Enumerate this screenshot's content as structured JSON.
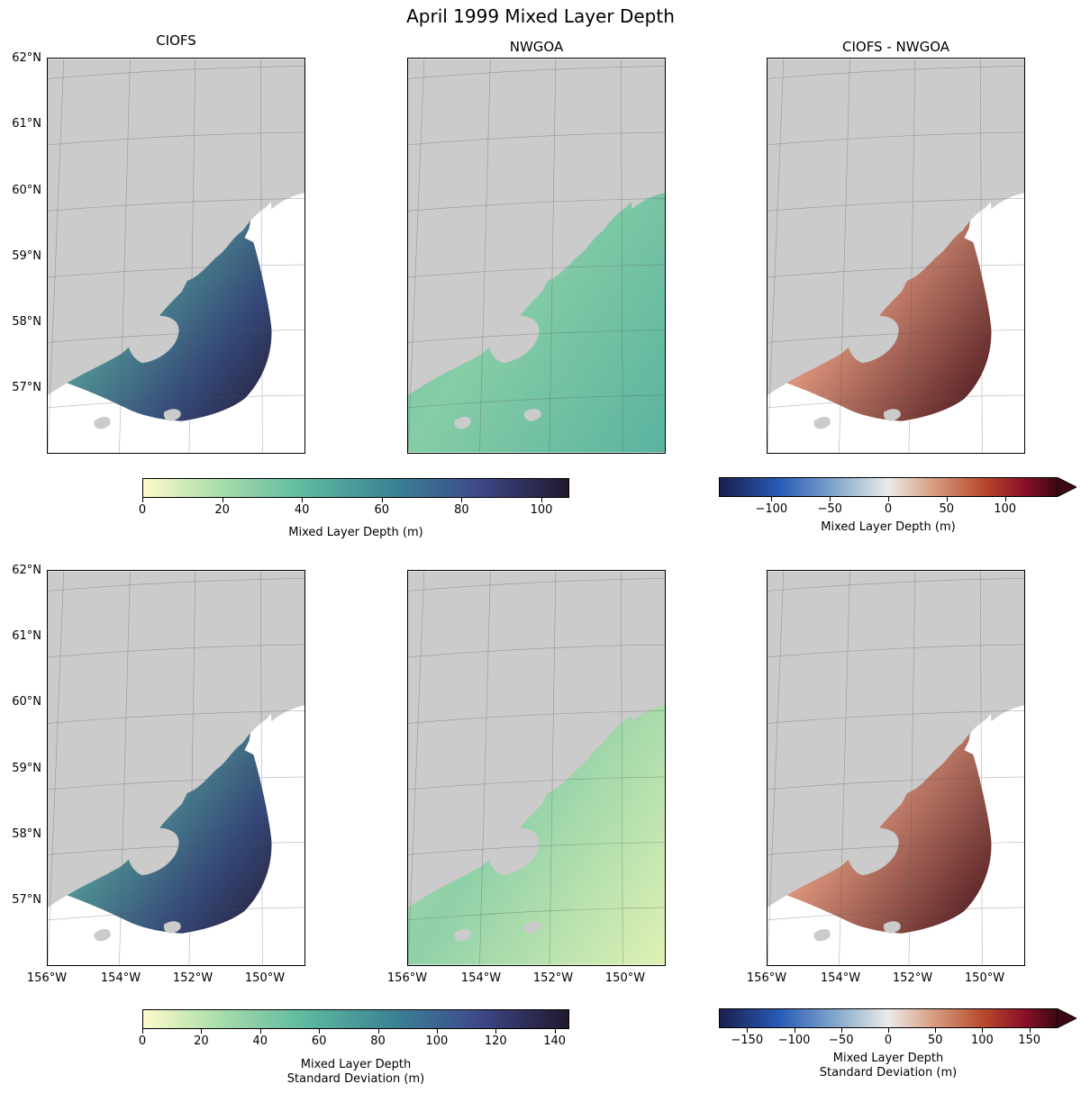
{
  "figure": {
    "title": "April 1999 Mixed Layer Depth"
  },
  "columns": [
    "CIOFS",
    "NWGOA",
    "CIOFS - NWGOA"
  ],
  "lat_labels": [
    "62°N",
    "61°N",
    "60°N",
    "59°N",
    "58°N",
    "57°N"
  ],
  "lon_labels": [
    "156°W",
    "154°W",
    "152°W",
    "150°W"
  ],
  "colorbars": {
    "mean_seq": {
      "ticks": [
        "0",
        "20",
        "40",
        "60",
        "80",
        "100"
      ],
      "label": "Mixed Layer Depth (m)",
      "range": [
        0,
        107
      ]
    },
    "mean_div": {
      "ticks": [
        "−100",
        "−50",
        "0",
        "50",
        "100"
      ],
      "label": "Mixed Layer Depth (m)",
      "range": [
        -145,
        145
      ],
      "extend": "max"
    },
    "std_seq": {
      "ticks": [
        "0",
        "20",
        "40",
        "60",
        "80",
        "100",
        "120",
        "140"
      ],
      "label_line1": "Mixed Layer Depth",
      "label_line2": "Standard Deviation (m)",
      "range": [
        0,
        145
      ]
    },
    "std_div": {
      "ticks": [
        "−150",
        "−100",
        "−50",
        "0",
        "50",
        "100",
        "150"
      ],
      "label_line1": "Mixed Layer Depth",
      "label_line2": "Standard Deviation (m)",
      "range": [
        -180,
        180
      ],
      "extend": "max"
    }
  },
  "colors": {
    "land": "#cbcbcb",
    "seq_low": "#fdfbc9",
    "seq_mid": "#5db9a0",
    "seq_high": "#22182e",
    "div_low": "#1b1f4e",
    "div_mid": "#ecebea",
    "div_high": "#3c0913"
  }
}
